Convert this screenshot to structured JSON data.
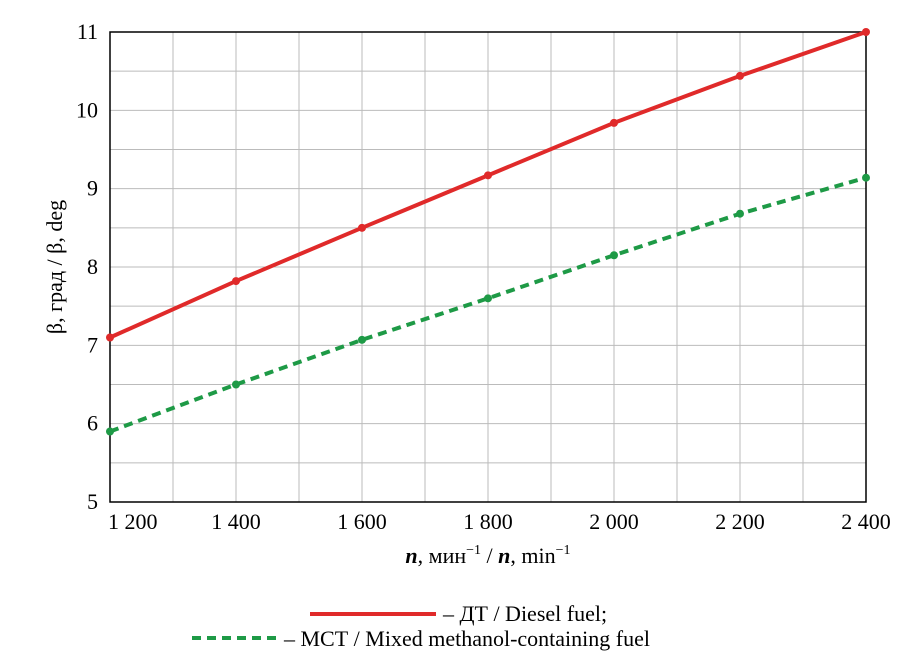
{
  "chart_data": {
    "type": "line",
    "title": "",
    "xlabel_parts": {
      "var1": "n",
      "unit1": ", мин",
      "exp1": "−1",
      "sep": " / ",
      "var2": "n",
      "unit2": ", min",
      "exp2": "−1"
    },
    "ylabel": "β, град / β, deg",
    "x": [
      1200,
      1400,
      1600,
      1800,
      2000,
      2200,
      2400
    ],
    "xlim": [
      1200,
      2400
    ],
    "ylim": [
      5,
      11
    ],
    "x_ticks": [
      1200,
      1400,
      1600,
      1800,
      2000,
      2200,
      2400
    ],
    "x_tick_labels": [
      "1 200",
      "1 400",
      "1 600",
      "1 800",
      "2 000",
      "2 200",
      "2 400"
    ],
    "y_ticks": [
      5,
      6,
      7,
      8,
      9,
      10,
      11
    ],
    "y_tick_labels": [
      "5",
      "6",
      "7",
      "8",
      "9",
      "10",
      "11"
    ],
    "grid": true,
    "legend_placement": "bottom-center",
    "series": [
      {
        "name": "– ДТ / Diesel fuel;",
        "color": "#e02a2a",
        "style": "solid",
        "values": [
          7.1,
          7.82,
          8.5,
          9.17,
          9.84,
          10.44,
          11.0
        ]
      },
      {
        "name": "– МСТ / Mixed methanol-containing fuel",
        "color": "#1e9a46",
        "style": "dashed",
        "values": [
          5.9,
          6.5,
          7.07,
          7.6,
          8.15,
          8.68,
          9.14
        ]
      }
    ]
  }
}
